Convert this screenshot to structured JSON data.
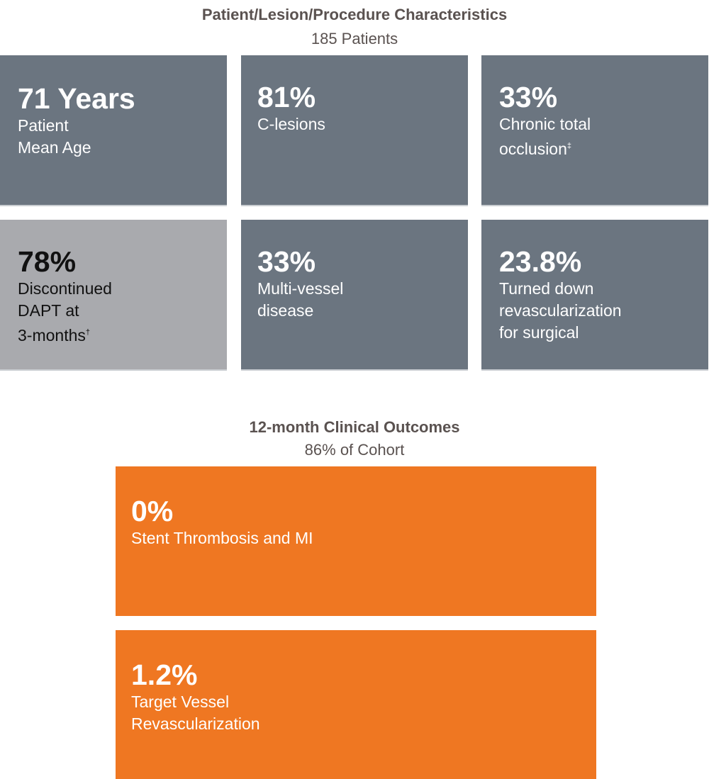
{
  "characteristics": {
    "title": "Patient/Lesion/Procedure Characteristics",
    "subtitle": "185 Patients",
    "tiles": [
      {
        "value": "71 Years",
        "label": "Patient\nMean Age",
        "mark": ""
      },
      {
        "value": "81%",
        "label": "C-lesions",
        "mark": ""
      },
      {
        "value": "33%",
        "label": "Chronic total\nocclusion",
        "mark": "‡"
      },
      {
        "value": "78%",
        "label": "Discontinued\nDAPT at\n3-months",
        "mark": "†"
      },
      {
        "value": "33%",
        "label": "Multi-vessel\ndisease",
        "mark": ""
      },
      {
        "value": "23.8%",
        "label": "Turned down\nrevascularization\nfor surgical",
        "mark": ""
      }
    ]
  },
  "outcomes": {
    "title": "12-month Clinical Outcomes",
    "subtitle": "86% of Cohort",
    "tiles": [
      {
        "value": "0%",
        "label": "Stent Thrombosis and MI"
      },
      {
        "value": "1.2%",
        "label": "Target Vessel\nRevascularization"
      }
    ]
  },
  "colors": {
    "tile_grey": "#6b7580",
    "tile_highlight": "#a9aaae",
    "outcome_orange": "#ef7722",
    "heading": "#5a5250"
  }
}
